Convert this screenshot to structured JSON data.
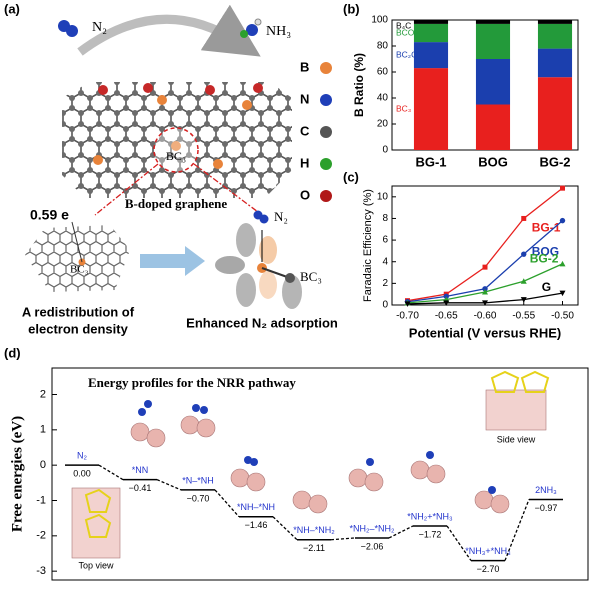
{
  "panel_labels": [
    "(a)",
    "(b)",
    "(c)",
    "(d)"
  ],
  "panel_a": {
    "reactant": "N₂",
    "product": "NH₃",
    "legend": [
      "B",
      "N",
      "C",
      "H",
      "O"
    ],
    "site_label": "BC₃",
    "material": "B-doped graphene",
    "charge": "0.59 e",
    "cluster_label": "BC₃",
    "caption_left": [
      "A redistribution of",
      "electron density"
    ],
    "caption_right": "Enhanced N₂ adsorption",
    "adsorbate": "N₂",
    "adsorbed_site": "BC₃"
  },
  "chart_data": [
    {
      "type": "stacked_bar",
      "y_label": "B Ratio (%)",
      "categories": [
        "BG-1",
        "BOG",
        "BG-2"
      ],
      "series": [
        {
          "name": "BC₃",
          "color": "#e8201e",
          "values": [
            63,
            35,
            56
          ]
        },
        {
          "name": "BC₂O",
          "color": "#1b3fae",
          "values": [
            20,
            35,
            22
          ]
        },
        {
          "name": "BCO₂",
          "color": "#239a3a",
          "values": [
            14,
            27,
            19
          ]
        },
        {
          "name": "B₄C",
          "color": "#000000",
          "values": [
            3,
            3,
            3
          ]
        }
      ],
      "ylim": [
        0,
        100
      ],
      "yticks": [
        0,
        20,
        40,
        60,
        80,
        100
      ]
    },
    {
      "type": "line",
      "x_label": "Potential (V versus RHE)",
      "y_label": "Faradaic Efficiency (%)",
      "x": [
        -0.7,
        -0.65,
        -0.6,
        -0.55,
        -0.5
      ],
      "series": [
        {
          "name": "BG-1",
          "color": "#e8201e",
          "marker": "square",
          "values": [
            0.4,
            1.0,
            3.5,
            8.0,
            10.8
          ]
        },
        {
          "name": "BOG",
          "color": "#1b3fae",
          "marker": "circle",
          "values": [
            0.3,
            0.8,
            1.5,
            4.7,
            7.8
          ]
        },
        {
          "name": "BG-2",
          "color": "#2ca02c",
          "marker": "triangle-up",
          "values": [
            0.2,
            0.5,
            1.2,
            2.2,
            3.8
          ]
        },
        {
          "name": "G",
          "color": "#000000",
          "marker": "triangle-down",
          "values": [
            0.1,
            0.2,
            0.2,
            0.5,
            1.1
          ]
        }
      ],
      "xlim": [
        -0.72,
        -0.48
      ],
      "xticks": [
        {
          "value": -0.7,
          "label": "-0.70"
        },
        {
          "value": -0.65,
          "label": "-0.65"
        },
        {
          "value": -0.6,
          "label": "-0.60"
        },
        {
          "value": -0.55,
          "label": "-0.55"
        },
        {
          "value": -0.5,
          "label": "-0.50"
        }
      ],
      "ylim": [
        0,
        11
      ],
      "yticks": [
        0,
        2,
        4,
        6,
        8,
        10
      ]
    },
    {
      "type": "energy_profile",
      "title": "Energy profiles for the NRR pathway",
      "y_label": "Free energies (eV)",
      "categories": [
        "N₂",
        "*NN",
        "*N–*NH",
        "*NH–*NH",
        "*NH–*NH₂",
        "*NH₂–*NH₂",
        "*NH₂+*NH₃",
        "*NH₃+*NH₃",
        "2NH₃"
      ],
      "values": [
        0.0,
        -0.41,
        -0.7,
        -1.46,
        -2.11,
        -2.06,
        -1.72,
        -2.7,
        -0.97
      ],
      "value_labels": [
        "0.00",
        "−0.41",
        "−0.70",
        "−1.46",
        "−2.11",
        "−2.06",
        "−1.72",
        "−2.70",
        "−0.97"
      ],
      "ylim": [
        -3.25,
        2.75
      ],
      "yticks": [
        -3,
        -2,
        -1,
        0,
        1,
        2
      ],
      "annotations": [
        "Top view",
        "Side view"
      ]
    }
  ]
}
